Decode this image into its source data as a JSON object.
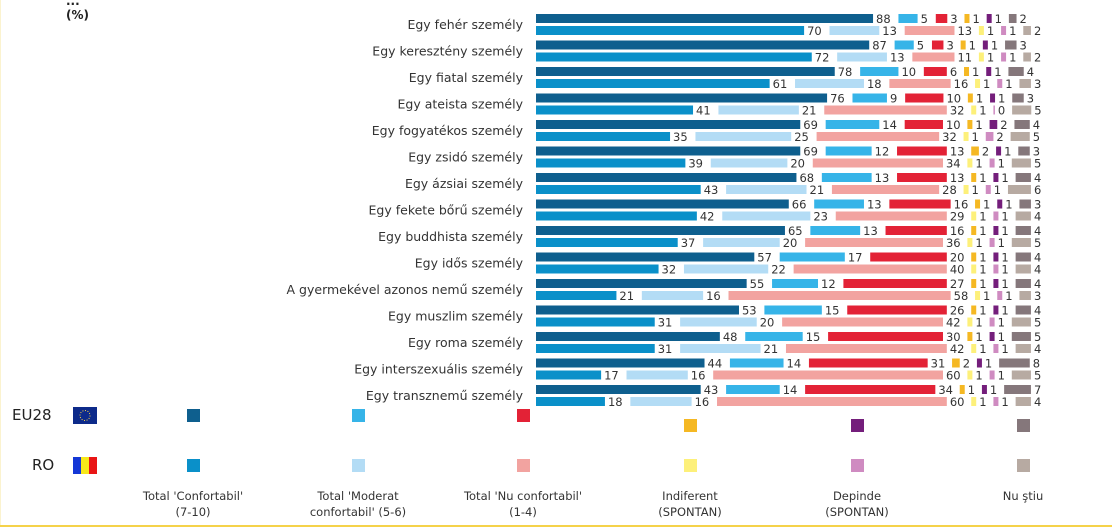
{
  "unit_label_top": "...",
  "unit_label": "(%)",
  "chart_data": {
    "type": "bar",
    "orientation": "horizontal-stacked-segmented",
    "title": "",
    "unit": "%",
    "categories": [
      "Egy fehér személy",
      "Egy keresztény személy",
      "Egy fiatal személy",
      "Egy ateista személy",
      "Egy fogyatékos személy",
      "Egy zsidó személy",
      "Egy ázsiai személy",
      "Egy fekete bőrű személy",
      "Egy buddhista személy",
      "Egy idős személy",
      "A gyermekével azonos nemű személy",
      "Egy muszlim személy",
      "Egy roma személy",
      "Egy interszexuális személy",
      "Egy transznemű személy"
    ],
    "groups": [
      "EU28",
      "RO"
    ],
    "segments": [
      "Total 'Confortabil' (7-10)",
      "Total 'Moderat confortabil' (5-6)",
      "Total 'Nu confortabil' (1-4)",
      "Indiferent (SPONTAN)",
      "Depinde (SPONTAN)",
      "Nu ştiu"
    ],
    "series": [
      {
        "name": "EU28",
        "values": [
          [
            88,
            5,
            3,
            1,
            1,
            2
          ],
          [
            87,
            5,
            3,
            1,
            1,
            3
          ],
          [
            78,
            10,
            6,
            1,
            1,
            4
          ],
          [
            76,
            9,
            10,
            1,
            1,
            3
          ],
          [
            69,
            14,
            10,
            1,
            2,
            4
          ],
          [
            69,
            12,
            13,
            2,
            1,
            3
          ],
          [
            68,
            13,
            13,
            1,
            1,
            4
          ],
          [
            66,
            13,
            16,
            1,
            1,
            3
          ],
          [
            65,
            13,
            16,
            1,
            1,
            4
          ],
          [
            57,
            17,
            20,
            1,
            1,
            4
          ],
          [
            55,
            12,
            27,
            1,
            1,
            4
          ],
          [
            53,
            15,
            26,
            1,
            1,
            4
          ],
          [
            48,
            15,
            30,
            1,
            1,
            5
          ],
          [
            44,
            14,
            31,
            2,
            1,
            8
          ],
          [
            43,
            14,
            34,
            1,
            1,
            7
          ]
        ]
      },
      {
        "name": "RO",
        "values": [
          [
            70,
            13,
            13,
            1,
            1,
            2
          ],
          [
            72,
            13,
            11,
            1,
            1,
            2
          ],
          [
            61,
            18,
            16,
            1,
            1,
            3
          ],
          [
            41,
            21,
            32,
            1,
            0,
            5
          ],
          [
            35,
            25,
            32,
            1,
            2,
            5
          ],
          [
            39,
            20,
            34,
            1,
            1,
            5
          ],
          [
            43,
            21,
            28,
            1,
            1,
            6
          ],
          [
            42,
            23,
            29,
            1,
            1,
            4
          ],
          [
            37,
            20,
            36,
            1,
            1,
            5
          ],
          [
            32,
            22,
            40,
            1,
            1,
            4
          ],
          [
            21,
            16,
            58,
            1,
            1,
            3
          ],
          [
            31,
            20,
            42,
            1,
            1,
            5
          ],
          [
            31,
            21,
            42,
            1,
            1,
            4
          ],
          [
            17,
            16,
            60,
            1,
            1,
            5
          ],
          [
            18,
            16,
            60,
            1,
            1,
            4
          ]
        ]
      }
    ],
    "colors": {
      "EU28": [
        "#0e5f8e",
        "#36b4e8",
        "#e32236",
        "#f5b823",
        "#741e7b",
        "#85777b"
      ],
      "RO": [
        "#0a90c9",
        "#b3dcf5",
        "#f2a3a0",
        "#fdf07a",
        "#cf8bc1",
        "#b7aaa2"
      ]
    },
    "legend": {
      "placement": "bottom",
      "rows": [
        {
          "label": "EU28",
          "flag": "eu-flag"
        },
        {
          "label": "RO",
          "flag": "ro-flag"
        }
      ],
      "columns": [
        {
          "line1": "Total 'Confortabil'",
          "line2": "(7-10)"
        },
        {
          "line1": "Total 'Moderat",
          "line2": "confortabil' (5-6)"
        },
        {
          "line1": "Total 'Nu confortabil'",
          "line2": "(1-4)"
        },
        {
          "line1": "Indiferent",
          "line2": "(SPONTAN)"
        },
        {
          "line1": "Depinde",
          "line2": "(SPONTAN)"
        },
        {
          "line1": "Nu ştiu",
          "line2": ""
        }
      ]
    },
    "grid": false
  }
}
